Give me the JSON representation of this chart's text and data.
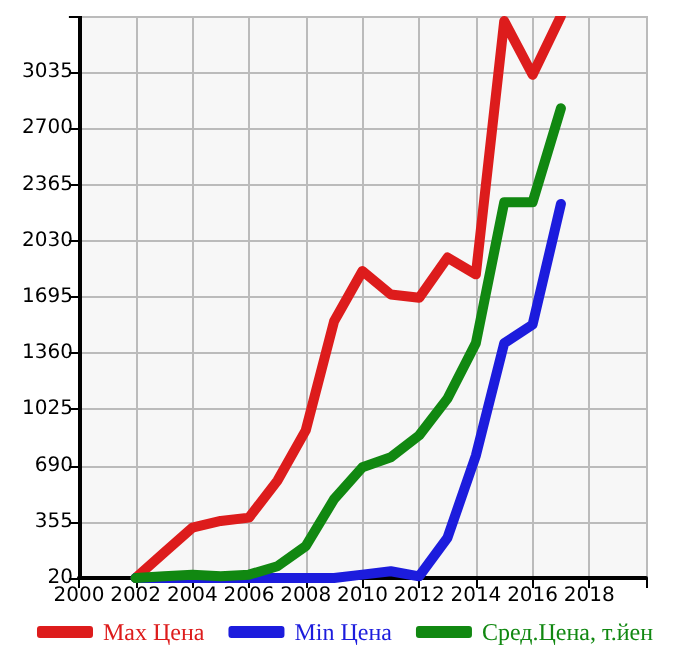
{
  "chart_data": {
    "type": "line",
    "x": [
      2002,
      2003,
      2004,
      2005,
      2006,
      2007,
      2008,
      2009,
      2010,
      2011,
      2012,
      2013,
      2014,
      2015,
      2016,
      2017
    ],
    "series": [
      {
        "name": "Max Цена",
        "color": "#dd1c1c",
        "values": [
          20,
          170,
          320,
          360,
          380,
          600,
          900,
          1550,
          1850,
          1710,
          1690,
          1930,
          1830,
          3340,
          3020,
          3370
        ]
      },
      {
        "name": "Min Цена",
        "color": "#1c1cdd",
        "values": [
          20,
          20,
          20,
          20,
          20,
          20,
          20,
          20,
          40,
          60,
          30,
          260,
          750,
          1420,
          1530,
          2250
        ]
      },
      {
        "name": "Сред.Цена, т.йен",
        "color": "#118811",
        "values": [
          20,
          30,
          40,
          30,
          40,
          90,
          210,
          490,
          680,
          740,
          870,
          1090,
          1420,
          2260,
          2260,
          2820
        ]
      }
    ],
    "xlim": [
      2000,
      2020
    ],
    "xticks": [
      2000,
      2002,
      2004,
      2006,
      2008,
      2010,
      2012,
      2014,
      2016,
      2018,
      {
        "value": 2020,
        "label": null
      }
    ],
    "ylim": [
      20,
      3370
    ],
    "yticks": [
      20,
      355,
      690,
      1025,
      1360,
      1695,
      2030,
      2365,
      2700,
      3035,
      {
        "value": 3370,
        "label": null
      }
    ],
    "grid": true,
    "legend": "bottom",
    "marker": "none",
    "line_style": "solid"
  }
}
